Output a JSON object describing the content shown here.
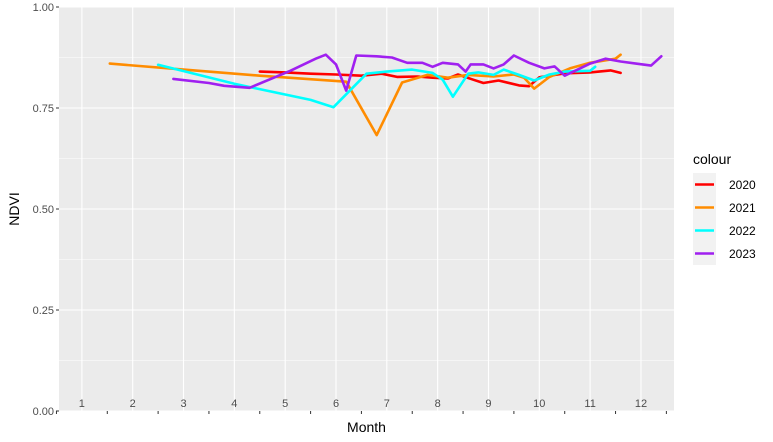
{
  "chart_data": {
    "type": "line",
    "xlabel": "Month",
    "ylabel": "NDVI",
    "ylim": [
      0,
      1
    ],
    "y_ticks": [
      "0.00",
      "0.25",
      "0.50",
      "0.75",
      "1.00"
    ],
    "y_tick_values": [
      0,
      0.25,
      0.5,
      0.75,
      1.0
    ],
    "x_tick_labels": [
      "1",
      "2",
      "3",
      "4",
      "5",
      "6",
      "7",
      "8",
      "9",
      "10",
      "11",
      "12"
    ],
    "grid": true,
    "legend": {
      "title": "colour",
      "placement": "right"
    },
    "series": [
      {
        "name": "2020",
        "color": "#ff0000",
        "points": [
          [
            4.5,
            0.84
          ],
          [
            5.0,
            0.838
          ],
          [
            5.5,
            0.835
          ],
          [
            6.0,
            0.833
          ],
          [
            6.5,
            0.83
          ],
          [
            6.9,
            0.835
          ],
          [
            7.2,
            0.827
          ],
          [
            7.6,
            0.828
          ],
          [
            7.9,
            0.825
          ],
          [
            8.2,
            0.823
          ],
          [
            8.4,
            0.833
          ],
          [
            8.7,
            0.82
          ],
          [
            8.9,
            0.812
          ],
          [
            9.2,
            0.818
          ],
          [
            9.6,
            0.806
          ],
          [
            9.8,
            0.804
          ],
          [
            10.0,
            0.826
          ],
          [
            10.5,
            0.836
          ],
          [
            11.0,
            0.838
          ],
          [
            11.4,
            0.843
          ],
          [
            11.6,
            0.837
          ]
        ]
      },
      {
        "name": "2021",
        "color": "#ff8c00",
        "points": [
          [
            1.55,
            0.86
          ],
          [
            3.0,
            0.845
          ],
          [
            4.5,
            0.83
          ],
          [
            6.2,
            0.815
          ],
          [
            6.8,
            0.683
          ],
          [
            7.3,
            0.813
          ],
          [
            7.8,
            0.832
          ],
          [
            8.2,
            0.825
          ],
          [
            8.6,
            0.832
          ],
          [
            9.1,
            0.828
          ],
          [
            9.5,
            0.833
          ],
          [
            9.7,
            0.825
          ],
          [
            9.9,
            0.798
          ],
          [
            10.2,
            0.827
          ],
          [
            10.6,
            0.848
          ],
          [
            11.0,
            0.862
          ],
          [
            11.5,
            0.872
          ],
          [
            11.6,
            0.882
          ]
        ]
      },
      {
        "name": "2022",
        "color": "#00ffff",
        "points": [
          [
            2.5,
            0.857
          ],
          [
            4.0,
            0.81
          ],
          [
            5.5,
            0.77
          ],
          [
            5.95,
            0.752
          ],
          [
            6.6,
            0.835
          ],
          [
            7.0,
            0.84
          ],
          [
            7.5,
            0.845
          ],
          [
            7.9,
            0.837
          ],
          [
            8.1,
            0.82
          ],
          [
            8.3,
            0.778
          ],
          [
            8.6,
            0.835
          ],
          [
            8.8,
            0.838
          ],
          [
            9.1,
            0.832
          ],
          [
            9.3,
            0.845
          ],
          [
            9.6,
            0.832
          ],
          [
            9.9,
            0.818
          ],
          [
            10.2,
            0.833
          ],
          [
            10.5,
            0.84
          ],
          [
            11.0,
            0.842
          ],
          [
            11.1,
            0.852
          ]
        ]
      },
      {
        "name": "2023",
        "color": "#a020f0",
        "points": [
          [
            2.8,
            0.822
          ],
          [
            3.5,
            0.812
          ],
          [
            3.8,
            0.805
          ],
          [
            4.3,
            0.8
          ],
          [
            5.1,
            0.842
          ],
          [
            5.6,
            0.872
          ],
          [
            5.8,
            0.882
          ],
          [
            6.0,
            0.858
          ],
          [
            6.2,
            0.793
          ],
          [
            6.4,
            0.88
          ],
          [
            6.8,
            0.878
          ],
          [
            7.1,
            0.875
          ],
          [
            7.4,
            0.862
          ],
          [
            7.7,
            0.862
          ],
          [
            7.9,
            0.852
          ],
          [
            8.1,
            0.862
          ],
          [
            8.4,
            0.858
          ],
          [
            8.55,
            0.84
          ],
          [
            8.65,
            0.858
          ],
          [
            8.9,
            0.858
          ],
          [
            9.1,
            0.848
          ],
          [
            9.3,
            0.858
          ],
          [
            9.5,
            0.88
          ],
          [
            9.8,
            0.862
          ],
          [
            10.1,
            0.848
          ],
          [
            10.3,
            0.853
          ],
          [
            10.5,
            0.83
          ],
          [
            10.8,
            0.848
          ],
          [
            11.0,
            0.86
          ],
          [
            11.3,
            0.872
          ],
          [
            11.6,
            0.865
          ],
          [
            11.9,
            0.86
          ],
          [
            12.2,
            0.855
          ],
          [
            12.4,
            0.878
          ]
        ]
      }
    ]
  }
}
